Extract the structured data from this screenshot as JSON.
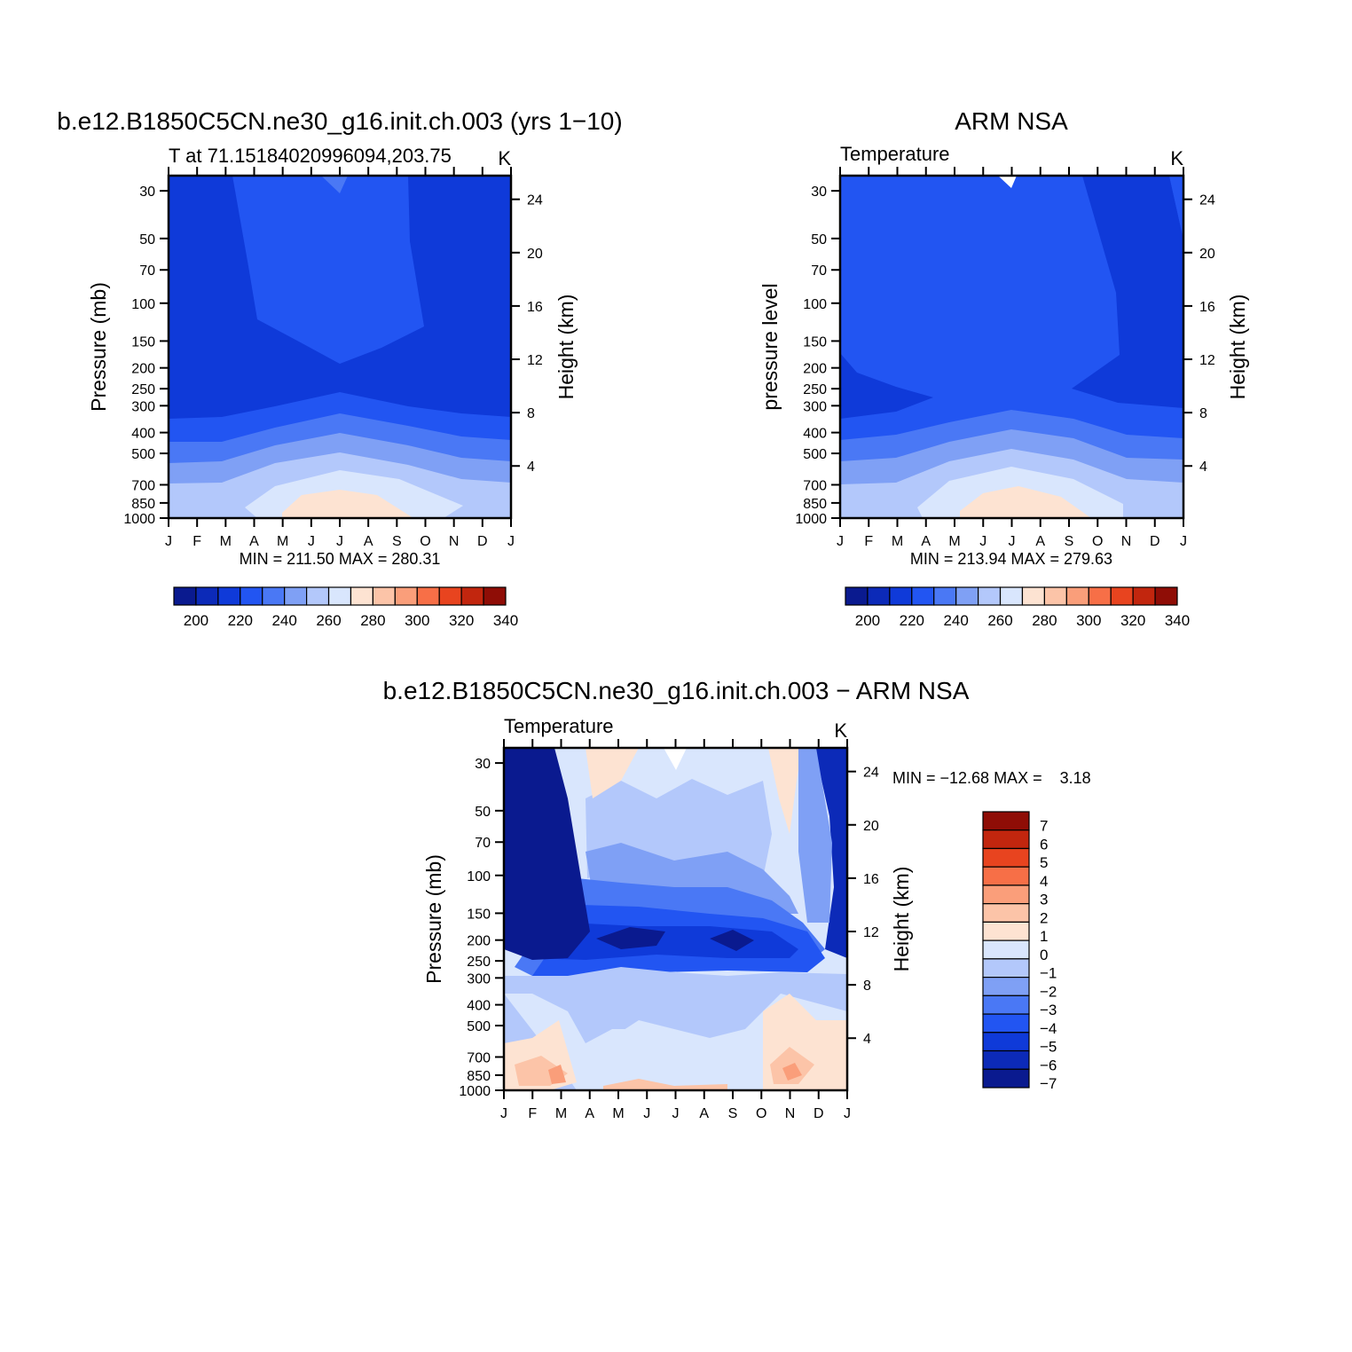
{
  "colors": {
    "abs_palette": [
      "#0a1a8f",
      "#0c2ab8",
      "#0f3ad9",
      "#2255f2",
      "#4a78f5",
      "#7fa0f5",
      "#b3c8fb",
      "#d9e6fd",
      "#fde3d2",
      "#fcc4a8",
      "#fa9e7a",
      "#f76f47",
      "#e8441f",
      "#c2260e",
      "#8f0d06"
    ],
    "diff_palette": [
      "#0a1a8f",
      "#0c2ab8",
      "#0f3ad9",
      "#2255f2",
      "#4a78f5",
      "#7fa0f5",
      "#b3c8fb",
      "#d9e6fd",
      "#fde3d2",
      "#fcc4a8",
      "#fa9e7a",
      "#f76f47",
      "#e8441f",
      "#c2260e",
      "#8f0d06"
    ]
  },
  "chart_data": [
    {
      "type": "heatmap",
      "title": "b.e12.B1850C5CN.ne30_g16.init.ch.003 (yrs 1−10)",
      "subtitle_left": "T at 71.15184020996094,203.75",
      "subtitle_right": "K",
      "ylabel": "Pressure (mb)",
      "ylabel_right": "Height (km)",
      "x": [
        "J",
        "F",
        "M",
        "A",
        "M",
        "J",
        "J",
        "A",
        "S",
        "O",
        "N",
        "D",
        "J"
      ],
      "y_ticks": [
        "30",
        "50",
        "70",
        "100",
        "150",
        "200",
        "250",
        "300",
        "400",
        "500",
        "700",
        "850",
        "1000"
      ],
      "y_right_ticks": [
        "24",
        "20",
        "16",
        "12",
        "8",
        "4"
      ],
      "stats": "MIN = 211.50 MAX = 280.31",
      "colorbar_labels": [
        "200",
        "220",
        "240",
        "260",
        "280",
        "300",
        "320",
        "340"
      ],
      "approx_values_by_pressure": {
        "30": [
          216,
          216,
          216,
          224,
          224,
          224,
          226,
          224,
          224,
          216,
          216,
          216,
          216
        ],
        "100": [
          214,
          214,
          216,
          222,
          224,
          224,
          224,
          224,
          222,
          216,
          214,
          214,
          214
        ],
        "200": [
          214,
          214,
          215,
          216,
          218,
          218,
          220,
          218,
          218,
          216,
          214,
          214,
          214
        ],
        "300": [
          224,
          224,
          225,
          226,
          228,
          230,
          230,
          230,
          228,
          226,
          225,
          224,
          224
        ],
        "500": [
          244,
          244,
          245,
          248,
          252,
          255,
          256,
          254,
          250,
          246,
          244,
          244,
          244
        ],
        "850": [
          260,
          260,
          261,
          264,
          270,
          276,
          278,
          276,
          270,
          264,
          260,
          260,
          260
        ],
        "1000": [
          262,
          262,
          263,
          268,
          274,
          280,
          280,
          278,
          272,
          266,
          262,
          262,
          262
        ]
      }
    },
    {
      "type": "heatmap",
      "title": "ARM NSA",
      "subtitle_left": "Temperature",
      "subtitle_right": "K",
      "ylabel": "pressure level",
      "ylabel_right": "Height (km)",
      "x": [
        "J",
        "F",
        "M",
        "A",
        "M",
        "J",
        "J",
        "A",
        "S",
        "O",
        "N",
        "D",
        "J"
      ],
      "y_ticks": [
        "30",
        "50",
        "70",
        "100",
        "150",
        "200",
        "250",
        "300",
        "400",
        "500",
        "700",
        "850",
        "1000"
      ],
      "y_right_ticks": [
        "24",
        "20",
        "16",
        "12",
        "8",
        "4"
      ],
      "stats": "MIN = 213.94 MAX = 279.63",
      "colorbar_labels": [
        "200",
        "220",
        "240",
        "260",
        "280",
        "300",
        "320",
        "340"
      ]
    },
    {
      "type": "heatmap",
      "title": "b.e12.B1850C5CN.ne30_g16.init.ch.003 − ARM NSA",
      "subtitle_left": "Temperature",
      "subtitle_right": "K",
      "ylabel": "Pressure (mb)",
      "ylabel_right": "Height (km)",
      "x": [
        "J",
        "F",
        "M",
        "A",
        "M",
        "J",
        "J",
        "A",
        "S",
        "O",
        "N",
        "D",
        "J"
      ],
      "y_ticks": [
        "30",
        "50",
        "70",
        "100",
        "150",
        "200",
        "250",
        "300",
        "400",
        "500",
        "700",
        "850",
        "1000"
      ],
      "y_right_ticks": [
        "24",
        "20",
        "16",
        "12",
        "8",
        "4"
      ],
      "stats": "MIN = −12.68 MAX =    3.18",
      "colorbar_labels": [
        "7",
        "6",
        "5",
        "4",
        "3",
        "2",
        "1",
        "0",
        "−1",
        "−2",
        "−3",
        "−4",
        "−5",
        "−6",
        "−7"
      ]
    }
  ]
}
